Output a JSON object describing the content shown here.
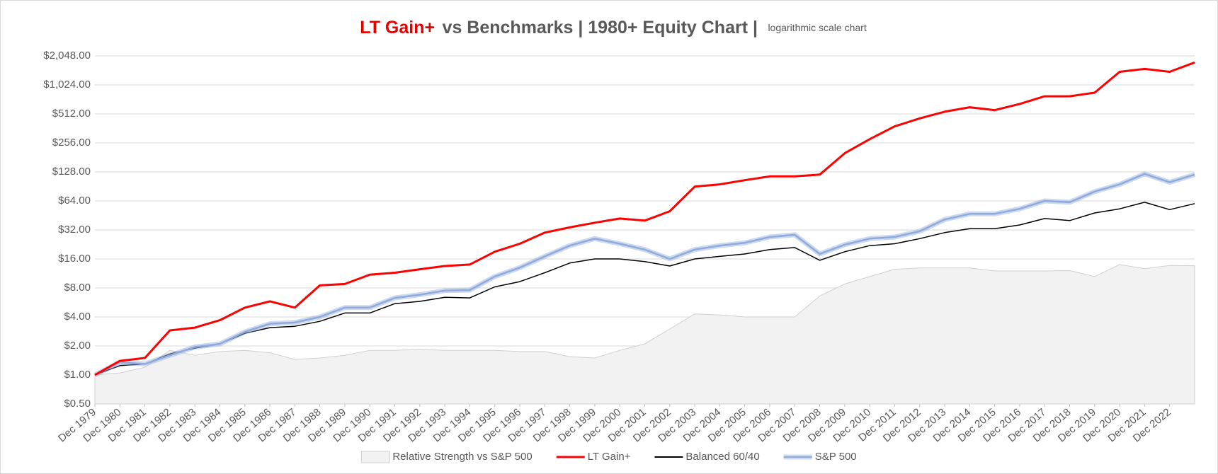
{
  "chart_data": {
    "type": "line",
    "title_highlight": "LT Gain+",
    "title": "vs Benchmarks  |  1980+ Equity Chart  |",
    "subtitle": "logarithmic scale chart",
    "yscale": "log",
    "ylim": [
      0.5,
      2048
    ],
    "yticks": [
      {
        "value": 0.5,
        "label": "$0.50"
      },
      {
        "value": 1,
        "label": "$1.00"
      },
      {
        "value": 2,
        "label": "$2.00"
      },
      {
        "value": 4,
        "label": "$4.00"
      },
      {
        "value": 8,
        "label": "$8.00"
      },
      {
        "value": 16,
        "label": "$16.00"
      },
      {
        "value": 32,
        "label": "$32.00"
      },
      {
        "value": 64,
        "label": "$64.00"
      },
      {
        "value": 128,
        "label": "$128.00"
      },
      {
        "value": 256,
        "label": "$256.00"
      },
      {
        "value": 512,
        "label": "$512.00"
      },
      {
        "value": 1024,
        "label": "$1,024.00"
      },
      {
        "value": 2048,
        "label": "$2,048.00"
      }
    ],
    "grid": true,
    "legend": "bottom",
    "categories": [
      "Dec 1979",
      "Dec 1980",
      "Dec 1981",
      "Dec 1982",
      "Dec 1983",
      "Dec 1984",
      "Dec 1985",
      "Dec 1986",
      "Dec 1987",
      "Dec 1988",
      "Dec 1989",
      "Dec 1990",
      "Dec 1991",
      "Dec 1992",
      "Dec 1993",
      "Dec 1994",
      "Dec 1995",
      "Dec 1996",
      "Dec 1997",
      "Dec 1998",
      "Dec 1999",
      "Dec 2000",
      "Dec 2001",
      "Dec 2002",
      "Dec 2003",
      "Dec 2004",
      "Dec 2005",
      "Dec 2006",
      "Dec 2007",
      "Dec 2008",
      "Dec 2009",
      "Dec 2010",
      "Dec 2011",
      "Dec 2012",
      "Dec 2013",
      "Dec 2014",
      "Dec 2015",
      "Dec 2016",
      "Dec 2017",
      "Dec 2018",
      "Dec 2019",
      "Dec 2020",
      "Dec 2021",
      "Dec 2022",
      null
    ],
    "series": [
      {
        "name": "Relative Strength vs S&P 500",
        "type": "area",
        "color": "#f2f2f2",
        "values": [
          1.0,
          1.05,
          1.2,
          1.8,
          1.6,
          1.75,
          1.8,
          1.7,
          1.45,
          1.5,
          1.6,
          1.8,
          1.8,
          1.85,
          1.8,
          1.8,
          1.8,
          1.75,
          1.75,
          1.55,
          1.5,
          1.8,
          2.1,
          3.0,
          4.3,
          4.2,
          4.0,
          4.0,
          4.0,
          6.6,
          8.8,
          10.5,
          12.5,
          12.9,
          12.9,
          12.9,
          12.0,
          12.0,
          12.0,
          12.1,
          10.5,
          14.0,
          12.7,
          13.7,
          13.6
        ]
      },
      {
        "name": "LT Gain+",
        "type": "line",
        "color": "#ff0000",
        "values": [
          1.0,
          1.4,
          1.5,
          2.9,
          3.1,
          3.7,
          5.0,
          5.8,
          5.0,
          8.5,
          8.8,
          11,
          11.5,
          12.5,
          13.5,
          14,
          19,
          23,
          30,
          34,
          38,
          42,
          40,
          50,
          90,
          95,
          105,
          115,
          115,
          120,
          200,
          280,
          380,
          460,
          540,
          600,
          560,
          650,
          780,
          780,
          850,
          1400,
          1500,
          1400,
          1750
        ]
      },
      {
        "name": "Balanced 60/40",
        "type": "line",
        "color": "#000000",
        "values": [
          1.0,
          1.25,
          1.3,
          1.65,
          1.9,
          2.1,
          2.7,
          3.1,
          3.2,
          3.6,
          4.4,
          4.4,
          5.5,
          5.8,
          6.4,
          6.3,
          8.2,
          9.3,
          11.5,
          14.5,
          16,
          16,
          15,
          13.5,
          16,
          17,
          18,
          20,
          21,
          15.5,
          19,
          22,
          23,
          26,
          30,
          33,
          33,
          36,
          42,
          40,
          48,
          53,
          62,
          52,
          60
        ]
      },
      {
        "name": "S&P 500",
        "type": "line",
        "color": "#8faadc",
        "values": [
          1.0,
          1.35,
          1.3,
          1.6,
          1.95,
          2.1,
          2.8,
          3.4,
          3.5,
          4.0,
          5.0,
          5.0,
          6.3,
          6.8,
          7.5,
          7.6,
          10.5,
          13,
          17,
          22,
          26,
          23,
          20,
          16,
          20,
          22,
          23.5,
          27,
          28.5,
          18,
          22.5,
          26,
          27,
          31,
          41,
          47,
          47,
          53,
          64,
          62,
          80,
          95,
          122,
          100,
          120
        ]
      }
    ]
  }
}
